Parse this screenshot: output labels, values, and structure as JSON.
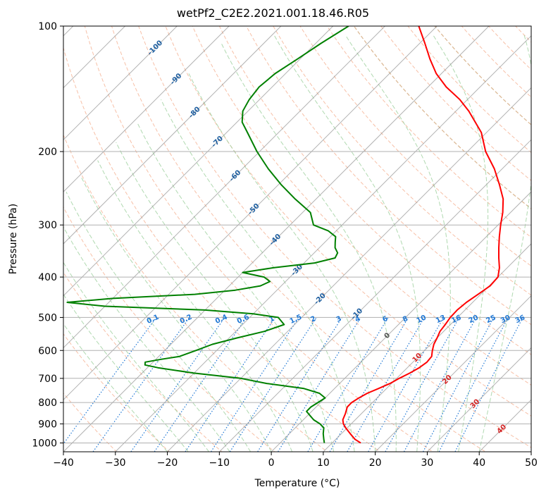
{
  "chart_data": {
    "type": "line",
    "title": "wetPf2_C2E2.2021.001.18.46.R05",
    "xlabel": "Temperature (°C)",
    "ylabel": "Pressure (hPa)",
    "xlim": [
      -40,
      50
    ],
    "ylim": [
      1050,
      100
    ],
    "y_scale": "log",
    "grid": true,
    "x_ticks": [
      -40,
      -30,
      -20,
      -10,
      0,
      10,
      20,
      30,
      40,
      50
    ],
    "y_ticks": [
      100,
      200,
      300,
      400,
      500,
      600,
      700,
      800,
      900,
      1000
    ],
    "series": [
      {
        "name": "",
        "color": "#ff0000",
        "pressure": [
          1000,
          980,
          950,
          920,
          900,
          880,
          850,
          820,
          800,
          780,
          760,
          740,
          720,
          700,
          680,
          660,
          640,
          620,
          600,
          580,
          560,
          540,
          520,
          500,
          480,
          460,
          440,
          420,
          400,
          380,
          360,
          340,
          320,
          300,
          280,
          260,
          240,
          220,
          200,
          180,
          160,
          150,
          140,
          130,
          120,
          110,
          100
        ],
        "temperature": [
          15.5,
          13.7,
          11.7,
          9.7,
          8.5,
          7.6,
          6.9,
          6.0,
          6.0,
          6.5,
          7.2,
          8.5,
          9.7,
          10.5,
          11.5,
          12.3,
          12.7,
          12.5,
          11.5,
          10.6,
          10.0,
          9.3,
          9.0,
          8.6,
          8.5,
          8.8,
          9.5,
          10.2,
          10.0,
          8.5,
          6.5,
          4.5,
          2.5,
          0.5,
          -1.5,
          -4.0,
          -7.5,
          -11.5,
          -16.5,
          -21.0,
          -27.5,
          -31.5,
          -36.5,
          -41.0,
          -45.0,
          -49.0,
          -53.5
        ]
      },
      {
        "name": "",
        "color": "#008000",
        "pressure": [
          1000,
          980,
          950,
          920,
          900,
          880,
          860,
          840,
          820,
          800,
          780,
          760,
          740,
          720,
          700,
          680,
          660,
          650,
          640,
          630,
          620,
          600,
          580,
          560,
          540,
          520,
          500,
          490,
          480,
          470,
          460,
          450,
          440,
          430,
          420,
          410,
          400,
          390,
          380,
          370,
          360,
          350,
          340,
          330,
          320,
          310,
          300,
          280,
          260,
          240,
          220,
          200,
          180,
          170,
          160,
          150,
          140,
          130,
          120,
          110,
          100
        ],
        "temperature": [
          8.5,
          7.7,
          6.5,
          5.5,
          4.0,
          2.0,
          0.5,
          -1.0,
          -1.0,
          -0.5,
          0.0,
          -2.0,
          -6.0,
          -14.0,
          -20.0,
          -30.0,
          -38.0,
          -41.0,
          -41.5,
          -39.0,
          -36.0,
          -34.0,
          -32.0,
          -28.5,
          -24.5,
          -22.0,
          -24.5,
          -30.0,
          -40.0,
          -60.0,
          -68.0,
          -60.0,
          -45.0,
          -38.0,
          -34.0,
          -33.0,
          -35.0,
          -40.0,
          -35.0,
          -28.0,
          -25.0,
          -25.5,
          -27.0,
          -28.0,
          -29.0,
          -31.5,
          -35.5,
          -38.5,
          -44.0,
          -49.5,
          -55.0,
          -60.5,
          -66.0,
          -69.0,
          -71.0,
          -72.0,
          -72.5,
          -72.0,
          -70.5,
          -69.0,
          -67.0
        ]
      }
    ],
    "isotherm_labels": [
      "-100",
      "-90",
      "-80",
      "-70",
      "-60",
      "-50",
      "-40",
      "-30",
      "-20",
      "-10",
      "0",
      "10",
      "20",
      "30",
      "40"
    ],
    "mixing_ratio_labels": [
      "0.1",
      "0.2",
      "0.4",
      "0.6",
      "1",
      "1.5",
      "2",
      "3",
      "4",
      "6",
      "8",
      "10",
      "13",
      "16",
      "20",
      "25",
      "30",
      "36"
    ],
    "colors": {
      "temperature": "#ff0000",
      "dewpoint": "#008000",
      "dry_adiabat": "#f4a582",
      "moist_adiabat": "#9ccf9c",
      "mixing_ratio": "#1f77d4",
      "isotherm_label_cold": "#1f5fa0",
      "isotherm_label_warm": "#d62728",
      "isotherm_label_zero": "#555555",
      "isobar_grid": "#b0b0b0",
      "isotherm_grid": "#999999",
      "dry_adiabat_alt": "#d2b48c"
    }
  }
}
